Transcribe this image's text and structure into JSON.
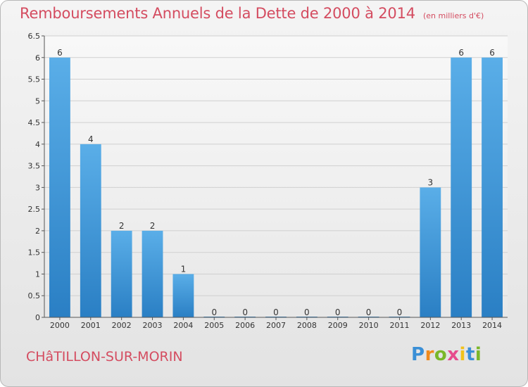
{
  "header": {
    "title": "Remboursements Annuels de la Dette de 2000 à 2014",
    "subtitle": "(en milliers d'€)"
  },
  "footer": {
    "town": "CHâTILLON-SUR-MORIN",
    "brand_letters": [
      "P",
      "r",
      "o",
      "x",
      "i",
      "t",
      "i"
    ]
  },
  "colors": {
    "title": "#d44c60",
    "bar_top": "#5aaee8",
    "bar_bottom": "#2a7fc4",
    "grid": "#d0d0d0",
    "axis": "#555555"
  },
  "chart_data": {
    "type": "bar",
    "title": "Remboursements Annuels de la Dette de 2000 à 2014",
    "subtitle": "(en milliers d'€)",
    "xlabel": "",
    "ylabel": "",
    "categories": [
      "2000",
      "2001",
      "2002",
      "2003",
      "2004",
      "2005",
      "2006",
      "2007",
      "2008",
      "2009",
      "2010",
      "2011",
      "2012",
      "2013",
      "2014"
    ],
    "values": [
      6,
      4,
      2,
      2,
      1,
      0,
      0,
      0,
      0,
      0,
      0,
      0,
      3,
      6,
      6
    ],
    "data_labels": [
      "6",
      "4",
      "2",
      "2",
      "1",
      "0",
      "0",
      "0",
      "0",
      "0",
      "0",
      "0",
      "3",
      "6",
      "6"
    ],
    "ylim": [
      0,
      6.5
    ],
    "yticks": [
      0,
      0.5,
      1,
      1.5,
      2,
      2.5,
      3,
      3.5,
      4,
      4.5,
      5,
      5.5,
      6,
      6.5
    ],
    "ytick_labels": [
      "0",
      "0.5",
      "1",
      "1.5",
      "2",
      "2.5",
      "3",
      "3.5",
      "4",
      "4.5",
      "5",
      "5.5",
      "6",
      "6.5"
    ],
    "grid": true,
    "legend": "none"
  }
}
